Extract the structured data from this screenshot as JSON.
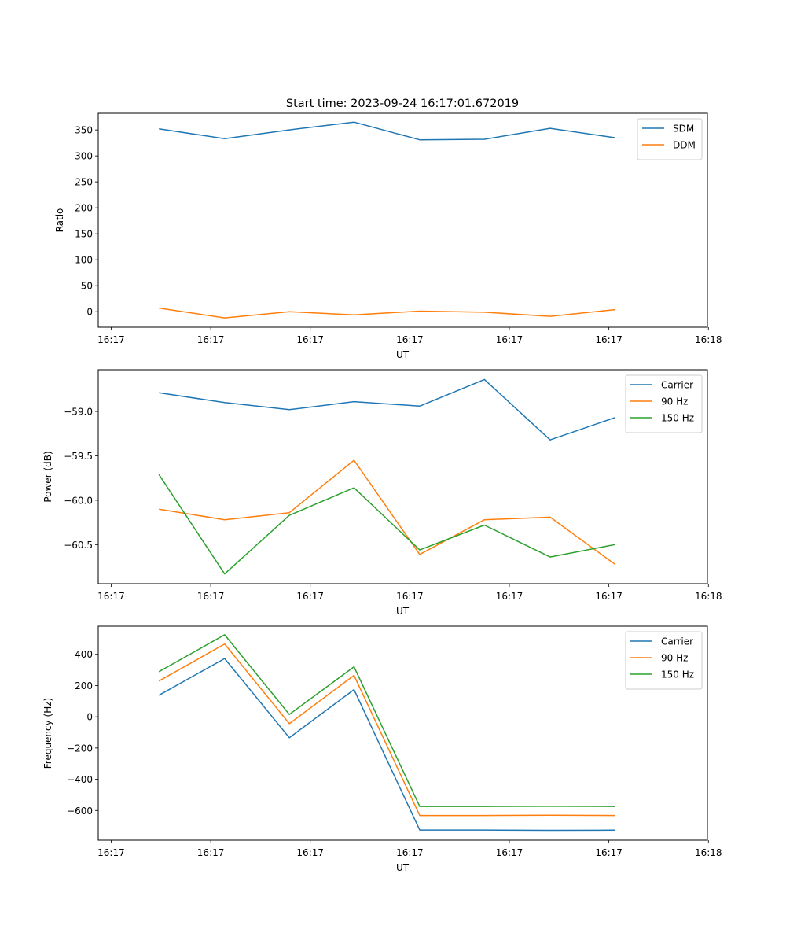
{
  "figure_title": "Start time: 2023-09-24 16:17:01.672019",
  "chart_data": [
    {
      "type": "line",
      "title": "Start time: 2023-09-24 16:17:01.672019",
      "xlabel": "UT",
      "ylabel": "Ratio",
      "x_tick_labels": [
        "16:17",
        "16:17",
        "16:17",
        "16:17",
        "16:17",
        "16:17",
        "16:18"
      ],
      "x_ticks": [
        0,
        1,
        2,
        3,
        4,
        5,
        6
      ],
      "xlim": [
        -0.13,
        5.99
      ],
      "x": [
        0.48,
        1.14,
        1.79,
        2.44,
        3.1,
        3.75,
        4.41,
        5.06
      ],
      "ylim": [
        -30,
        382
      ],
      "y_ticks": [
        0,
        50,
        100,
        150,
        200,
        250,
        300,
        350
      ],
      "y_tick_labels": [
        "0",
        "50",
        "100",
        "150",
        "200",
        "250",
        "300",
        "350"
      ],
      "legend": "top-right",
      "grid": false,
      "series": [
        {
          "name": "SDM",
          "color": "#1f77b4",
          "values": [
            352,
            333,
            350,
            365,
            331,
            332,
            353,
            335
          ]
        },
        {
          "name": "DDM",
          "color": "#ff7f0e",
          "values": [
            7,
            -12,
            0,
            -6,
            1,
            -1,
            -9,
            4
          ]
        }
      ]
    },
    {
      "type": "line",
      "title": "",
      "xlabel": "UT",
      "ylabel": "Power (dB)",
      "x_tick_labels": [
        "16:17",
        "16:17",
        "16:17",
        "16:17",
        "16:17",
        "16:17",
        "16:18"
      ],
      "x_ticks": [
        0,
        1,
        2,
        3,
        4,
        5,
        6
      ],
      "xlim": [
        -0.13,
        5.99
      ],
      "x": [
        0.48,
        1.14,
        1.79,
        2.44,
        3.1,
        3.75,
        4.41,
        5.06
      ],
      "ylim": [
        -60.94,
        -58.53
      ],
      "y_ticks": [
        -59.0,
        -59.5,
        -60.0,
        -60.5
      ],
      "y_tick_labels": [
        "−59.0",
        "−59.5",
        "−60.0",
        "−60.5"
      ],
      "legend": "top-right",
      "grid": false,
      "series": [
        {
          "name": "Carrier",
          "color": "#1f77b4",
          "values": [
            -58.79,
            -58.9,
            -58.98,
            -58.89,
            -58.94,
            -58.64,
            -59.32,
            -59.07
          ]
        },
        {
          "name": "90 Hz",
          "color": "#ff7f0e",
          "values": [
            -60.1,
            -60.22,
            -60.14,
            -59.55,
            -60.61,
            -60.22,
            -60.19,
            -60.72
          ]
        },
        {
          "name": "150 Hz",
          "color": "#2ca02c",
          "values": [
            -59.71,
            -60.83,
            -60.17,
            -59.86,
            -60.56,
            -60.28,
            -60.64,
            -60.5
          ]
        }
      ]
    },
    {
      "type": "line",
      "title": "",
      "xlabel": "UT",
      "ylabel": "Frequency (Hz)",
      "x_tick_labels": [
        "16:17",
        "16:17",
        "16:17",
        "16:17",
        "16:17",
        "16:17",
        "16:18"
      ],
      "x_ticks": [
        0,
        1,
        2,
        3,
        4,
        5,
        6
      ],
      "xlim": [
        -0.13,
        5.99
      ],
      "x": [
        0.48,
        1.14,
        1.79,
        2.44,
        3.1,
        3.75,
        4.41,
        5.06
      ],
      "ylim": [
        -790,
        580
      ],
      "y_ticks": [
        400,
        200,
        0,
        -200,
        -400,
        -600
      ],
      "y_tick_labels": [
        "400",
        "200",
        "0",
        "−200",
        "−400",
        "−600"
      ],
      "legend": "top-right",
      "grid": false,
      "series": [
        {
          "name": "Carrier",
          "color": "#1f77b4",
          "values": [
            138,
            373,
            -134,
            174,
            -725,
            -725,
            -727,
            -726
          ]
        },
        {
          "name": "90 Hz",
          "color": "#ff7f0e",
          "values": [
            229,
            466,
            -44,
            265,
            -632,
            -632,
            -630,
            -632
          ]
        },
        {
          "name": "150 Hz",
          "color": "#2ca02c",
          "values": [
            289,
            525,
            15,
            320,
            -574,
            -574,
            -573,
            -574
          ]
        }
      ]
    }
  ]
}
